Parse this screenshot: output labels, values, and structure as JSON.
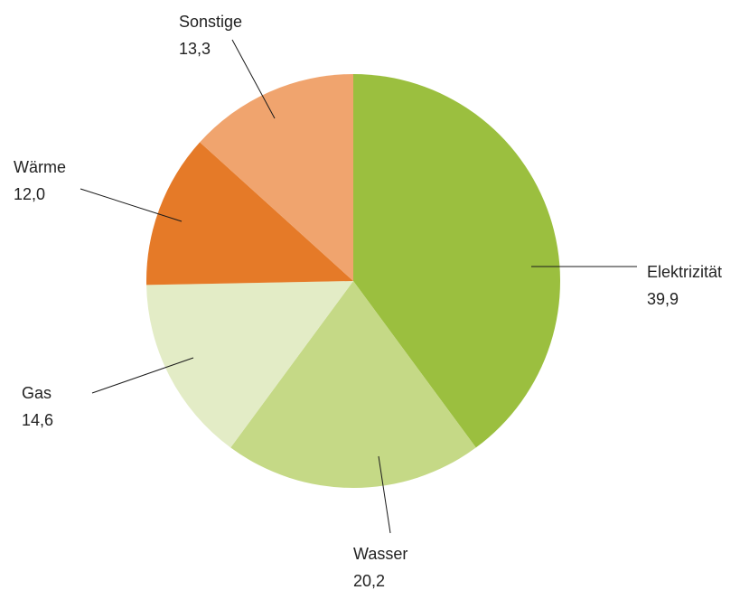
{
  "chart_data": {
    "type": "pie",
    "title": "",
    "slices": [
      {
        "label": "Elektrizität",
        "value": 39.9,
        "value_label": "39,9",
        "color": "#9bbf3f"
      },
      {
        "label": "Wasser",
        "value": 20.2,
        "value_label": "20,2",
        "color": "#c5d986"
      },
      {
        "label": "Gas",
        "value": 14.6,
        "value_label": "14,6",
        "color": "#e3ecc6"
      },
      {
        "label": "Wärme",
        "value": 12.0,
        "value_label": "12,0",
        "color": "#e57a28"
      },
      {
        "label": "Sonstige",
        "value": 13.3,
        "value_label": "13,3",
        "color": "#f0a46e"
      }
    ],
    "start": "12 o'clock",
    "direction": "clockwise",
    "legend": "none",
    "labels": "outside with leader lines"
  }
}
